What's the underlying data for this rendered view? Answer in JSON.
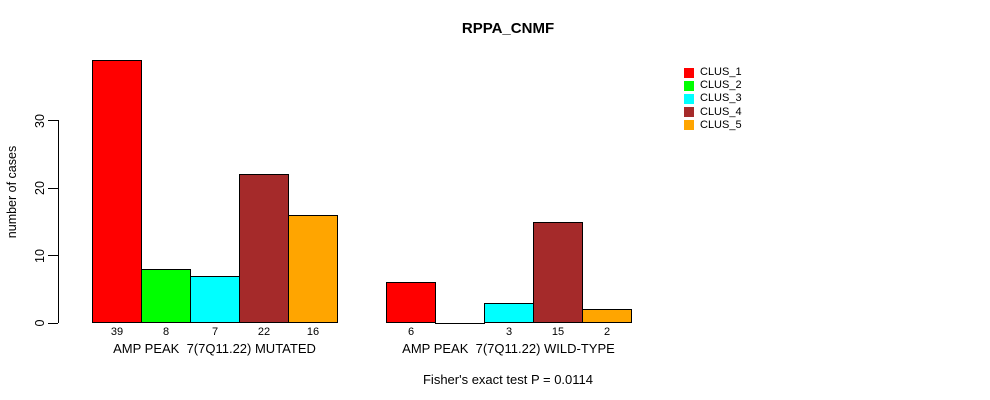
{
  "chart_data": {
    "type": "bar",
    "title": "RPPA_CNMF",
    "ylabel": "number of cases",
    "annotation": "Fisher's exact test P = 0.0114",
    "groups": [
      "AMP PEAK  7(7Q11.22) MUTATED",
      "AMP PEAK  7(7Q11.22) WILD-TYPE"
    ],
    "series": [
      {
        "name": "CLUS_1",
        "color": "#FF0000",
        "values": [
          39,
          6
        ]
      },
      {
        "name": "CLUS_2",
        "color": "#00FF00",
        "values": [
          8,
          0
        ]
      },
      {
        "name": "CLUS_3",
        "color": "#00FFFF",
        "values": [
          7,
          3
        ]
      },
      {
        "name": "CLUS_4",
        "color": "#A52A2A",
        "values": [
          22,
          15
        ]
      },
      {
        "name": "CLUS_5",
        "color": "#FFA500",
        "values": [
          16,
          2
        ]
      }
    ],
    "bar_labels": [
      [
        "39",
        "8",
        "7",
        "22",
        "16"
      ],
      [
        "6",
        null,
        "3",
        "15",
        "2"
      ]
    ],
    "yticks": [
      0,
      10,
      20,
      30
    ],
    "ylim": [
      0,
      39
    ],
    "grid": false,
    "legend_position": "right"
  }
}
